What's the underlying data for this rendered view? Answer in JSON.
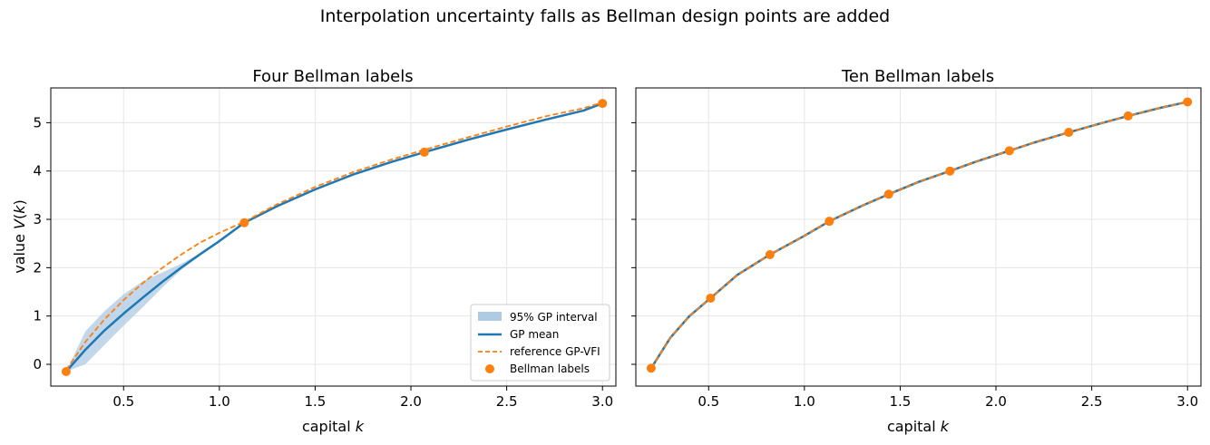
{
  "figure": {
    "suptitle": "Interpolation uncertainty falls as Bellman design points are added"
  },
  "legend": {
    "items": [
      {
        "label": "95% GP interval",
        "kind": "patch",
        "color": "#aecbe3"
      },
      {
        "label": "GP mean",
        "kind": "line",
        "color": "#1f77b4"
      },
      {
        "label": "reference GP-VFI",
        "kind": "dashed",
        "color": "#ff7f0e"
      },
      {
        "label": "Bellman labels",
        "kind": "marker",
        "color": "#ff7f0e"
      }
    ]
  },
  "colors": {
    "gp_mean": "#1f77b4",
    "band": "#aecbe3",
    "reference": "#ff7f0e",
    "points": "#ff7f0e",
    "grid": "#e5e5e5"
  },
  "chart_data": [
    {
      "type": "line",
      "title": "Four Bellman labels",
      "xlabel": "capital k",
      "ylabel": "value V(k)",
      "xlim": [
        0.12,
        3.07
      ],
      "ylim": [
        -0.45,
        5.72
      ],
      "xticks": [
        "0.5",
        "1.0",
        "1.5",
        "2.0",
        "2.5",
        "3.0"
      ],
      "yticks": [
        "0",
        "1",
        "2",
        "3",
        "4",
        "5"
      ],
      "grid": true,
      "legend_position": "lower-right",
      "x": [
        0.2,
        0.3,
        0.4,
        0.5,
        0.6,
        0.7,
        0.8,
        0.9,
        1.0,
        1.13,
        1.3,
        1.5,
        1.7,
        1.9,
        2.07,
        2.3,
        2.5,
        2.7,
        2.9,
        3.0
      ],
      "series": [
        {
          "name": "GP mean",
          "style": "solid",
          "values": [
            -0.15,
            0.3,
            0.7,
            1.05,
            1.38,
            1.7,
            2.0,
            2.28,
            2.55,
            2.93,
            3.27,
            3.62,
            3.93,
            4.19,
            4.39,
            4.65,
            4.86,
            5.06,
            5.25,
            5.4
          ]
        },
        {
          "name": "reference GP-VFI",
          "style": "dashed",
          "values": [
            -0.12,
            0.46,
            0.93,
            1.33,
            1.68,
            1.99,
            2.27,
            2.52,
            2.72,
            2.95,
            3.31,
            3.67,
            3.98,
            4.24,
            4.44,
            4.7,
            4.92,
            5.13,
            5.3,
            5.42
          ]
        }
      ],
      "interval": {
        "name": "95% GP interval",
        "lower": [
          -0.15,
          0.0,
          0.4,
          0.8,
          1.18,
          1.58,
          1.95,
          2.26,
          2.55,
          2.93,
          3.27,
          3.62,
          3.93,
          4.19,
          4.39,
          4.65,
          4.86,
          5.06,
          5.25,
          5.4
        ],
        "upper": [
          -0.15,
          0.68,
          1.1,
          1.45,
          1.72,
          1.9,
          2.08,
          2.3,
          2.55,
          2.93,
          3.27,
          3.62,
          3.93,
          4.19,
          4.39,
          4.65,
          4.86,
          5.06,
          5.25,
          5.4
        ]
      },
      "points": {
        "name": "Bellman labels",
        "x": [
          0.2,
          1.13,
          2.07,
          3.0
        ],
        "y": [
          -0.15,
          2.93,
          4.39,
          5.4
        ]
      }
    },
    {
      "type": "line",
      "title": "Ten Bellman labels",
      "xlabel": "capital k",
      "ylabel": "",
      "xlim": [
        0.12,
        3.07
      ],
      "ylim": [
        -0.45,
        5.72
      ],
      "xticks": [
        "0.5",
        "1.0",
        "1.5",
        "2.0",
        "2.5",
        "3.0"
      ],
      "yticks": [],
      "grid": true,
      "x": [
        0.2,
        0.3,
        0.4,
        0.51,
        0.65,
        0.82,
        1.0,
        1.13,
        1.3,
        1.44,
        1.6,
        1.76,
        1.9,
        2.07,
        2.2,
        2.38,
        2.55,
        2.69,
        2.85,
        3.0
      ],
      "series": [
        {
          "name": "GP mean",
          "style": "solid",
          "values": [
            -0.08,
            0.55,
            1.0,
            1.37,
            1.85,
            2.27,
            2.66,
            2.96,
            3.28,
            3.52,
            3.78,
            4.0,
            4.2,
            4.42,
            4.59,
            4.8,
            4.99,
            5.14,
            5.3,
            5.43
          ]
        },
        {
          "name": "reference GP-VFI",
          "style": "dashed",
          "values": [
            -0.08,
            0.55,
            1.0,
            1.37,
            1.85,
            2.27,
            2.66,
            2.96,
            3.28,
            3.52,
            3.78,
            4.0,
            4.2,
            4.42,
            4.59,
            4.8,
            4.99,
            5.14,
            5.3,
            5.43
          ]
        }
      ],
      "points": {
        "name": "Bellman labels",
        "x": [
          0.2,
          0.51,
          0.82,
          1.13,
          1.44,
          1.76,
          2.07,
          2.38,
          2.69,
          3.0
        ],
        "y": [
          -0.08,
          1.37,
          2.27,
          2.96,
          3.52,
          4.0,
          4.42,
          4.8,
          5.14,
          5.43
        ]
      }
    }
  ]
}
